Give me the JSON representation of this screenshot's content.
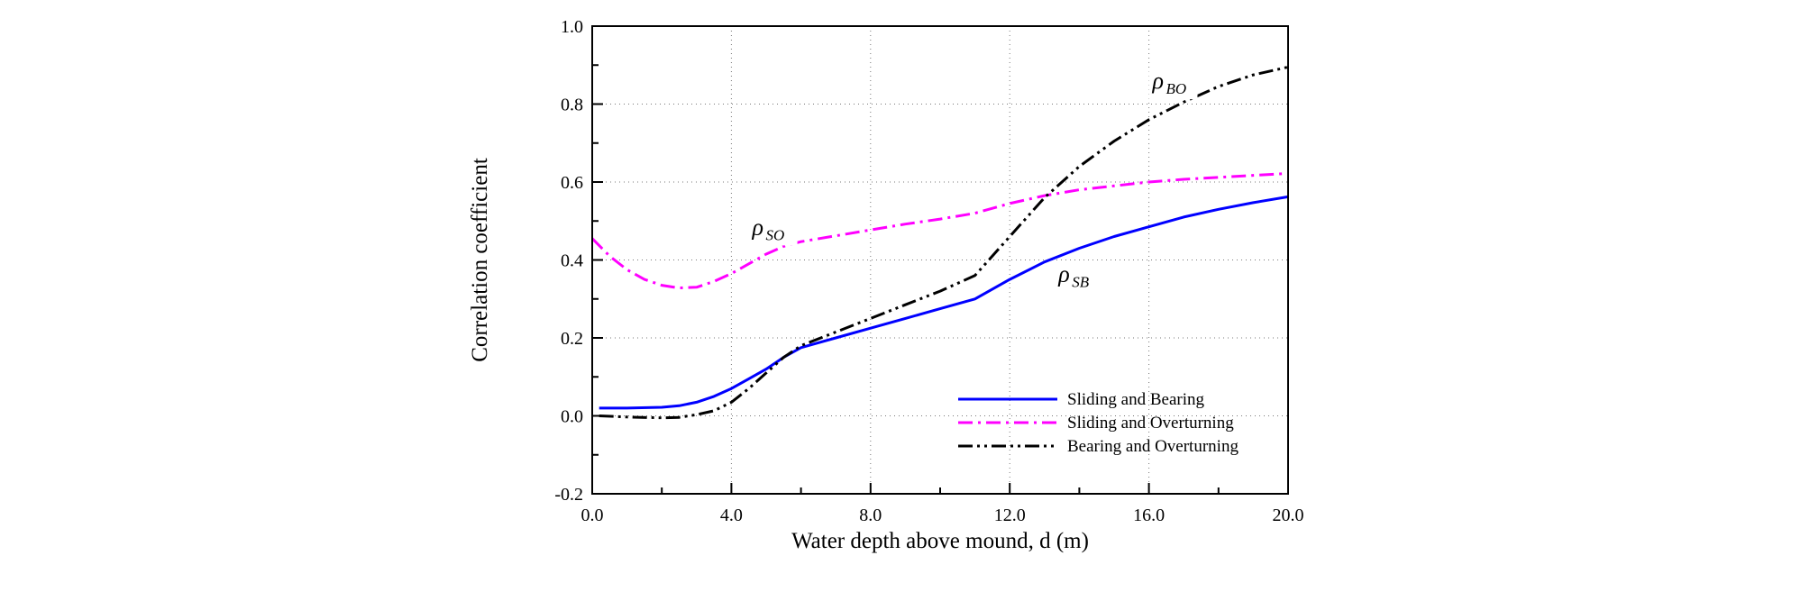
{
  "chart_data": {
    "type": "line",
    "title": "",
    "xlabel": "Water depth above mound, d (m)",
    "ylabel": "Correlation coefficient",
    "xlim": [
      0,
      20
    ],
    "ylim": [
      -0.2,
      1.0
    ],
    "xticks": [
      0,
      4,
      8,
      12,
      16,
      20
    ],
    "xtick_labels": [
      "0.0",
      "4.0",
      "8.0",
      "12.0",
      "16.0",
      "20.0"
    ],
    "yticks": [
      -0.2,
      0,
      0.2,
      0.4,
      0.6,
      0.8,
      1.0
    ],
    "ytick_labels": [
      "-0.2",
      "0.0",
      "0.2",
      "0.4",
      "0.6",
      "0.8",
      "1.0"
    ],
    "grid": true,
    "legend_position": "lower-right",
    "series": [
      {
        "name": "Sliding and Bearing",
        "color": "#0000ff",
        "dash": "solid",
        "x": [
          0.2,
          1,
          2,
          2.5,
          3,
          3.5,
          4,
          4.5,
          5,
          5.5,
          6,
          7,
          8,
          9,
          10,
          11,
          12,
          13,
          14,
          15,
          16,
          17,
          18,
          19,
          20
        ],
        "y": [
          0.02,
          0.02,
          0.022,
          0.026,
          0.035,
          0.05,
          0.07,
          0.095,
          0.12,
          0.15,
          0.175,
          0.2,
          0.225,
          0.25,
          0.275,
          0.3,
          0.35,
          0.395,
          0.43,
          0.46,
          0.485,
          0.51,
          0.53,
          0.547,
          0.562
        ]
      },
      {
        "name": "Sliding and Overturning",
        "color": "#ff00ff",
        "dash": "dashdot",
        "x": [
          0,
          0.5,
          1,
          1.5,
          2,
          2.5,
          3,
          3.5,
          4,
          4.5,
          5,
          5.5,
          6,
          7,
          8,
          9,
          10,
          11,
          12,
          13,
          14,
          15,
          16,
          17,
          18,
          19,
          20
        ],
        "y": [
          0.455,
          0.41,
          0.375,
          0.35,
          0.335,
          0.328,
          0.33,
          0.345,
          0.365,
          0.39,
          0.415,
          0.435,
          0.447,
          0.462,
          0.477,
          0.492,
          0.505,
          0.52,
          0.545,
          0.565,
          0.58,
          0.59,
          0.6,
          0.607,
          0.612,
          0.617,
          0.622
        ]
      },
      {
        "name": "Bearing and Overturning",
        "color": "#000000",
        "dash": "dashdotdot",
        "x": [
          0.2,
          1,
          2,
          2.5,
          3,
          3.5,
          4,
          4.5,
          5,
          5.5,
          6,
          7,
          8,
          9,
          10,
          11,
          12,
          13,
          14,
          15,
          16,
          17,
          18,
          19,
          20
        ],
        "y": [
          0.0,
          -0.003,
          -0.005,
          -0.004,
          0.003,
          0.013,
          0.035,
          0.07,
          0.11,
          0.15,
          0.18,
          0.215,
          0.25,
          0.285,
          0.32,
          0.36,
          0.46,
          0.56,
          0.64,
          0.705,
          0.76,
          0.805,
          0.845,
          0.875,
          0.895
        ]
      }
    ],
    "annotations": [
      {
        "symbol": "ρ",
        "subscript": "SO",
        "x": 4.6,
        "y": 0.465
      },
      {
        "symbol": "ρ",
        "subscript": "SB",
        "x": 13.4,
        "y": 0.345
      },
      {
        "symbol": "ρ",
        "subscript": "BO",
        "x": 16.1,
        "y": 0.84
      }
    ]
  }
}
